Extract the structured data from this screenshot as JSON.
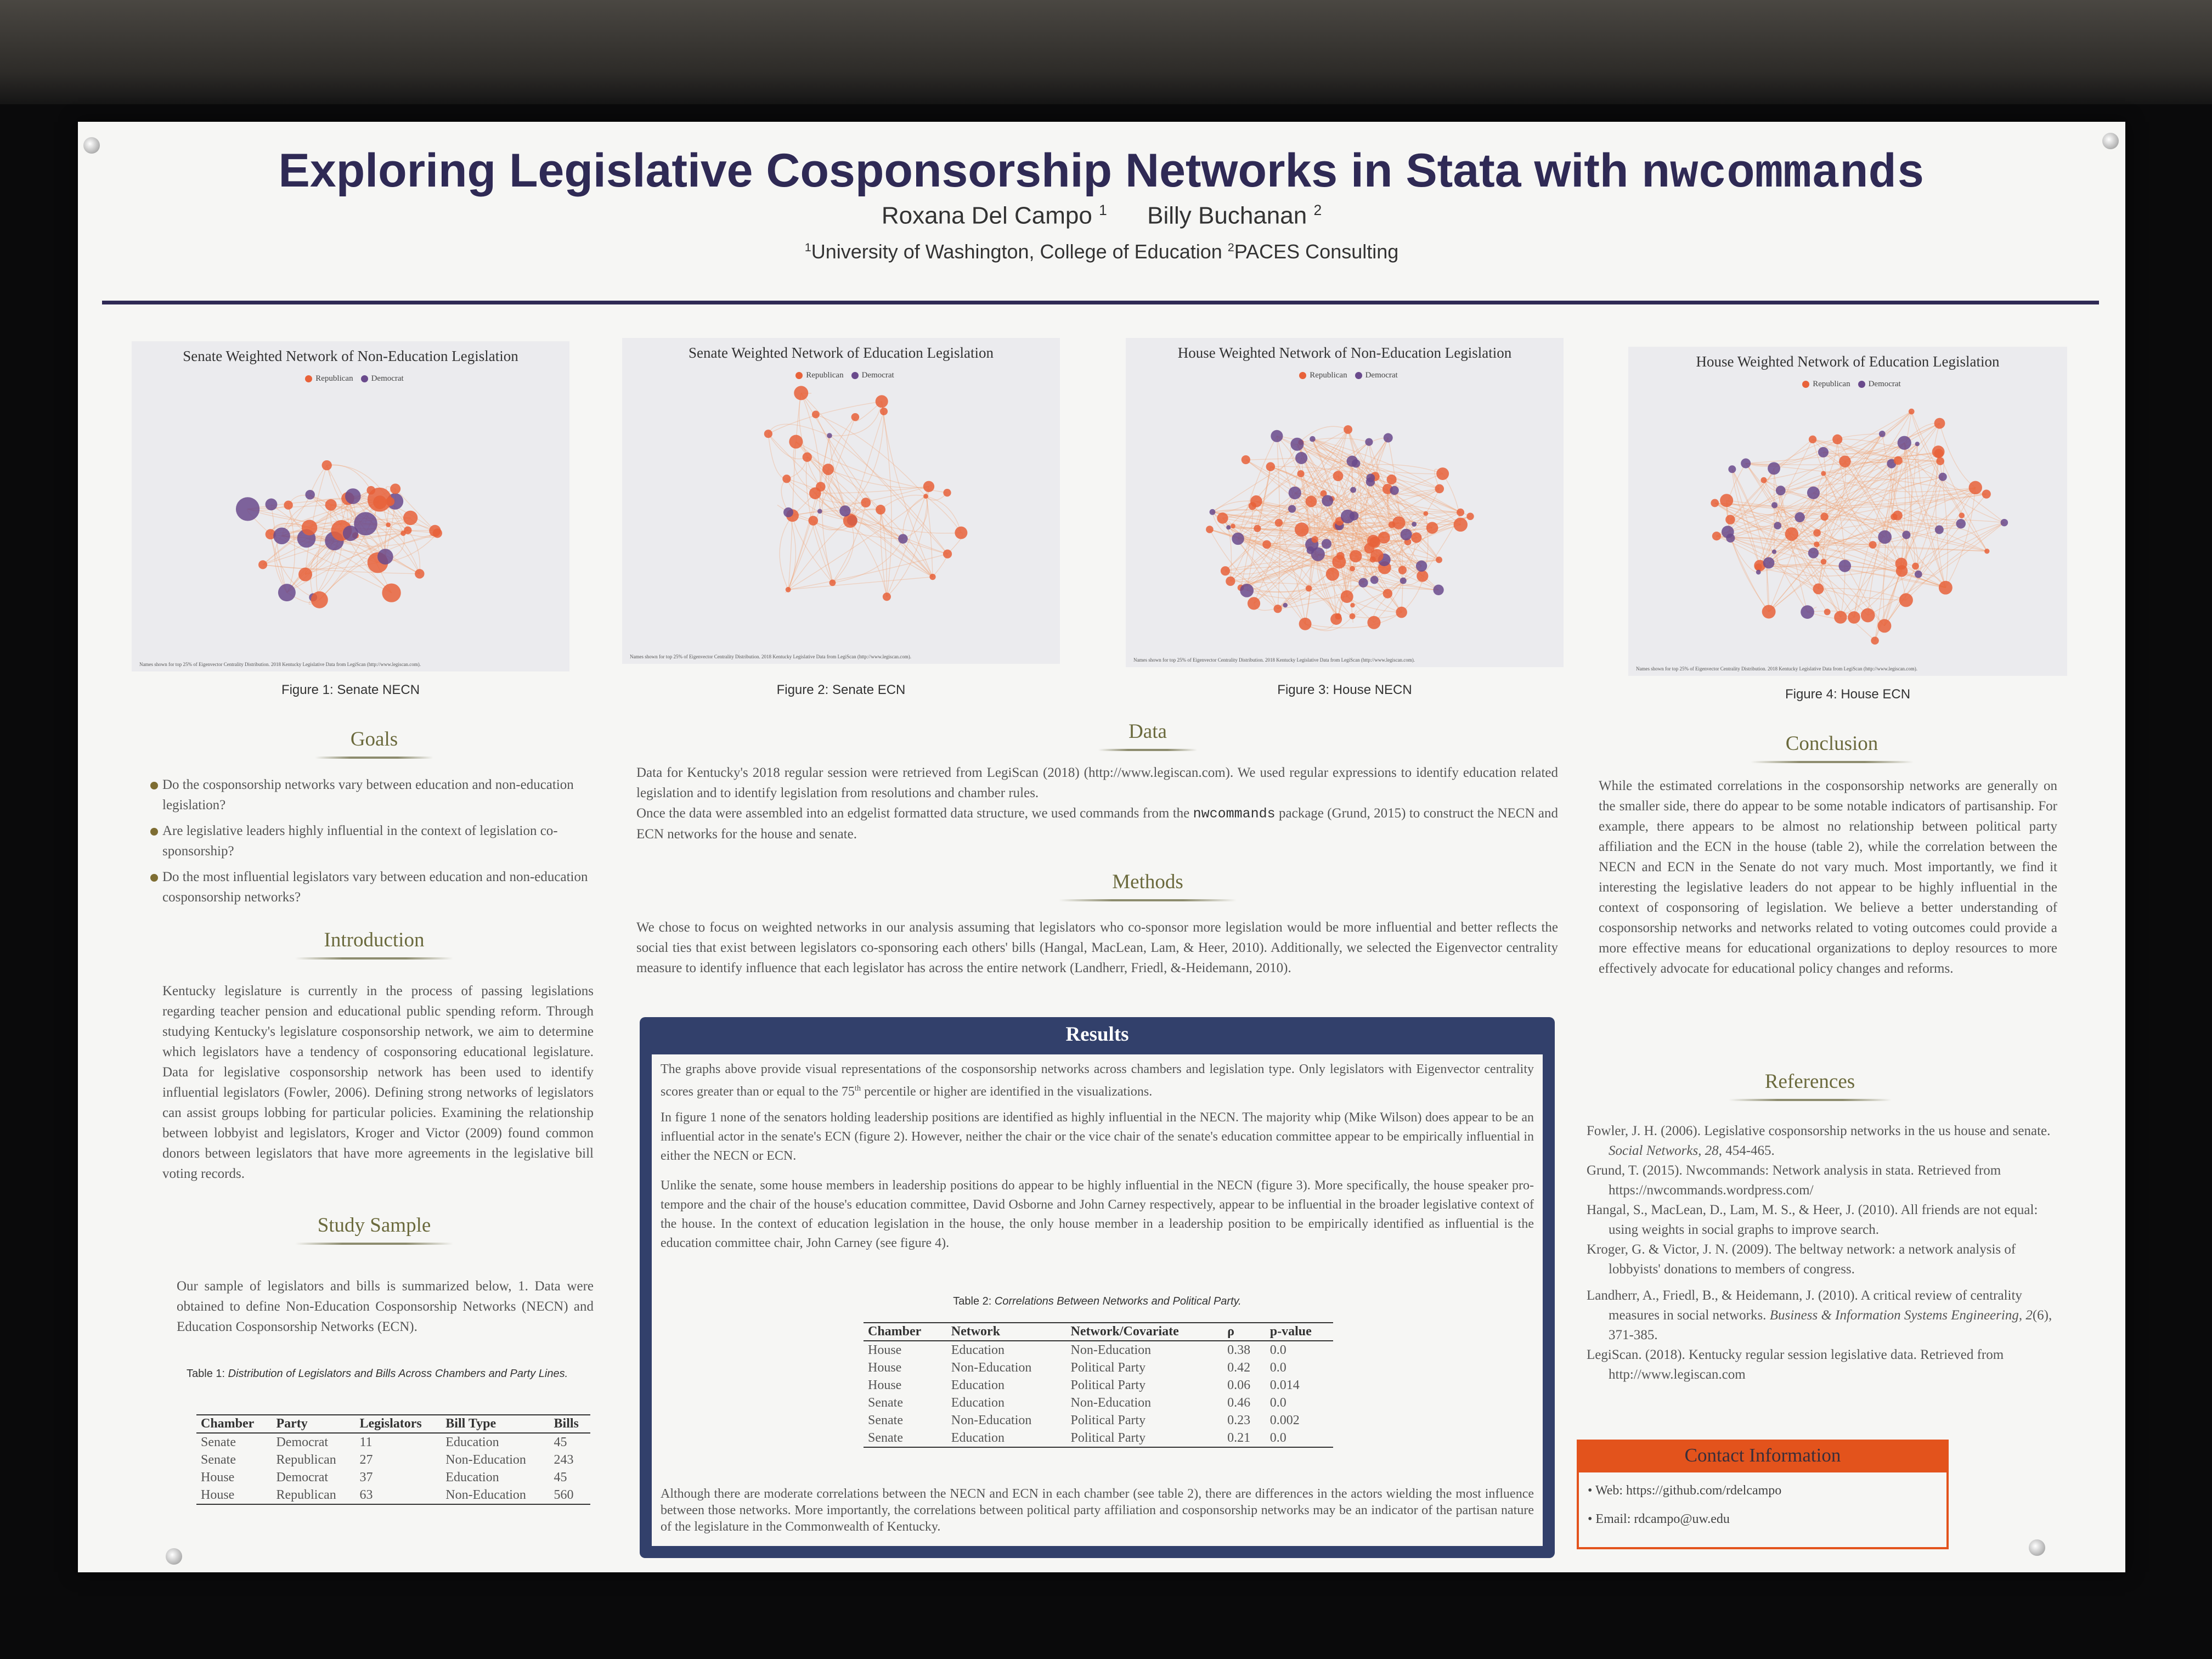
{
  "poster": {
    "title_main": "Exploring Legislative Cosponsorship Networks in Stata with ",
    "title_code": "nwcommands",
    "author1": "Roxana Del Campo",
    "author1_sup": "1",
    "author2": "Billy Buchanan",
    "author2_sup": "2",
    "affil1_sup": "1",
    "affil1": "University of Washington, College of Education ",
    "affil2_sup": "2",
    "affil2": "PACES Consulting"
  },
  "figures": [
    {
      "title": "Senate Weighted Network of Non-Education Legislation",
      "legend_rep": "Republican",
      "legend_dem": "Democrat",
      "note": "Names shown for top 25% of Eigenvector Centrality Distribution.  2018 Kentucky Legislative Data from LegiScan (http://www.legiscan.com).",
      "caption": "Figure 1: Senate NECN"
    },
    {
      "title": "Senate Weighted Network of Education Legislation",
      "legend_rep": "Republican",
      "legend_dem": "Democrat",
      "note": "Names shown for top 25% of Eigenvector Centrality Distribution.  2018 Kentucky Legislative Data from LegiScan (http://www.legiscan.com).",
      "caption": "Figure 2: Senate ECN"
    },
    {
      "title": "House Weighted Network of Non-Education Legislation",
      "legend_rep": "Republican",
      "legend_dem": "Democrat",
      "note": "Names shown for top 25% of Eigenvector Centrality Distribution.  2018 Kentucky Legislative Data from LegiScan (http://www.legiscan.com).",
      "caption": "Figure 3: House NECN"
    },
    {
      "title": "House Weighted Network of Education Legislation",
      "legend_rep": "Republican",
      "legend_dem": "Democrat",
      "note": "Names shown for top 25% of Eigenvector Centrality Distribution.  2018 Kentucky Legislative Data from LegiScan (http://www.legiscan.com).",
      "caption": "Figure 4: House ECN"
    }
  ],
  "colors": {
    "republican": "#e8623a",
    "democrat": "#6a4a8c",
    "header_navy": "#2f2a55",
    "results_blue": "#32406b",
    "contact_orange": "#e3531c"
  },
  "goals": {
    "heading": "Goals",
    "items": [
      "Do the cosponsorship networks vary between education and non-education legislation?",
      "Are legislative leaders highly influential in the context of legislation co-sponsorship?",
      "Do the most influential legislators vary between education and non-education cosponsorship networks?"
    ]
  },
  "introduction": {
    "heading": "Introduction",
    "text": "Kentucky legislature is currently in the process of passing legislations regarding teacher pension and educational public spending reform. Through studying Kentucky's legislature cosponsorship network, we aim to determine which legislators have a tendency of cosponsoring educational legislature. Data for legislative cosponsorship network has been used to identify influential legislators (Fowler, 2006). Defining strong networks of legislators can assist groups lobbing for particular policies. Examining the relationship between lobbyist and legislators, Kroger and Victor (2009) found common donors between legislators that have more agreements in the legislative bill voting records."
  },
  "study_sample": {
    "heading": "Study Sample",
    "text": "Our sample of legislators and bills is summarized below, 1. Data were obtained to define Non-Education Cosponsorship Networks (NECN) and Education Cosponsorship Networks (ECN).",
    "table_label": "Table 1:",
    "table_caption": "Distribution of Legislators and Bills Across Chambers and Party Lines.",
    "headers": [
      "Chamber",
      "Party",
      "Legislators",
      "Bill Type",
      "Bills"
    ],
    "rows": [
      [
        "Senate",
        "Democrat",
        "11",
        "Education",
        "45"
      ],
      [
        "Senate",
        "Republican",
        "27",
        "Non-Education",
        "243"
      ],
      [
        "House",
        "Democrat",
        "37",
        "Education",
        "45"
      ],
      [
        "House",
        "Republican",
        "63",
        "Non-Education",
        "560"
      ]
    ]
  },
  "data_section": {
    "heading": "Data",
    "text1": "Data for Kentucky's 2018 regular session were retrieved from LegiScan (2018) (http://www.legiscan.com). We used regular expressions to identify education related legislation and to identify legislation from resolutions and chamber rules.",
    "text2a": "Once the data were assembled into an edgelist formatted data structure, we used commands from the ",
    "text2_code": "nwcommands",
    "text2b": " package (Grund, 2015) to construct the NECN and ECN networks for the house and senate."
  },
  "methods": {
    "heading": "Methods",
    "text": "We chose to focus on weighted networks in our analysis assuming that legislators who co-sponsor more legislation would be more influential and better reflects the social ties that exist between legislators co-sponsoring each others' bills (Hangal, MacLean, Lam, & Heer, 2010). Additionally, we selected the Eigenvector centrality measure to identify influence that each legislator has across the entire network (Landherr, Friedl, &-Heidemann, 2010)."
  },
  "results": {
    "heading": "Results",
    "p1a": "The graphs above provide visual representations of the cosponsorship networks across chambers and legislation type.  Only legislators with Eigenvector centrality scores greater than or equal to the 75",
    "p1_sup": "th",
    "p1b": " percentile or higher are identified in the visualizations.",
    "p2": "In figure 1 none of the senators holding leadership positions are identified as highly influential in the NECN. The majority whip (Mike Wilson) does appear to be an influential actor in the senate's ECN (figure 2). However, neither the chair or the vice chair of the senate's education committee appear to be empirically influential in either the NECN or ECN.",
    "p3": "Unlike the senate, some house members in leadership positions do appear to be highly influential in the NECN (figure 3). More specifically, the house speaker pro-tempore and the chair of the house's education committee, David Osborne and John Carney respectively, appear to be influential in the broader legislative context of the house. In the context of education legislation in the house, the only house member in a leadership position to be empirically identified as influential is the education committee chair, John Carney (see figure 4).",
    "table_label": "Table 2:",
    "table_caption": "Correlations Between Networks and Political Party.",
    "headers": [
      "Chamber",
      "Network",
      "Network/Covariate",
      "ρ",
      "p-value"
    ],
    "rows": [
      [
        "House",
        "Education",
        "Non-Education",
        "0.38",
        "0.0"
      ],
      [
        "House",
        "Non-Education",
        "Political Party",
        "0.42",
        "0.0"
      ],
      [
        "House",
        "Education",
        "Political Party",
        "0.06",
        "0.014"
      ],
      [
        "Senate",
        "Education",
        "Non-Education",
        "0.46",
        "0.0"
      ],
      [
        "Senate",
        "Non-Education",
        "Political Party",
        "0.23",
        "0.002"
      ],
      [
        "Senate",
        "Education",
        "Political Party",
        "0.21",
        "0.0"
      ]
    ],
    "p4": "Although there are moderate correlations between the NECN and ECN in each chamber (see table 2), there are differences in the actors wielding the most influence between those networks.  More importantly, the correlations between political party affiliation and cosponsorship networks may be an indicator of the partisan nature of the legislature in the Commonwealth of Kentucky."
  },
  "conclusion": {
    "heading": "Conclusion",
    "text": "While the estimated correlations in the cosponsorship networks are generally on the smaller side, there do appear to be some notable indicators of partisanship. For example, there appears to be almost no relationship between political party affiliation and the ECN in the house (table 2), while the correlation between the NECN and ECN in the Senate do not vary much. Most importantly, we find it interesting the legislative leaders do not appear to be highly influential in the context of cosponsoring of legislation.  We believe a better understanding of cosponsorship networks and networks related to voting outcomes could provide a more effective means for educational organizations to deploy resources to more effectively advocate for educational policy changes and reforms."
  },
  "references": {
    "heading": "References",
    "r1a": "Fowler, J. H. (2006). Legislative cosponsorship networks in the us house and senate. ",
    "r1_i": "Social Networks, 28",
    "r1b": ", 454-465.",
    "r2": "Grund, T. (2015). Nwcommands: Network analysis in stata. Retrieved from https://nwcommands.wordpress.com/",
    "r3": "Hangal, S., MacLean, D., Lam, M. S., & Heer, J. (2010). All friends are not equal: using weights in social graphs to improve search.",
    "r4": "Kroger, G. & Victor, J. N. (2009). The beltway network: a network analysis of lobbyists' donations to members of congress.",
    "r5a": "Landherr, A., Friedl, B., & Heidemann, J. (2010). A critical review of centrality measures in social networks. ",
    "r5_i": "Business & Information Systems Engineering, 2",
    "r5b": "(6), 371-385.",
    "r6": "LegiScan. (2018). Kentucky regular session legislative data. Retrieved from http://www.legiscan.com"
  },
  "contact": {
    "heading": "Contact Information",
    "web": "• Web: https://github.com/rdelcampo",
    "email": "• Email: rdcampo@uw.edu"
  }
}
